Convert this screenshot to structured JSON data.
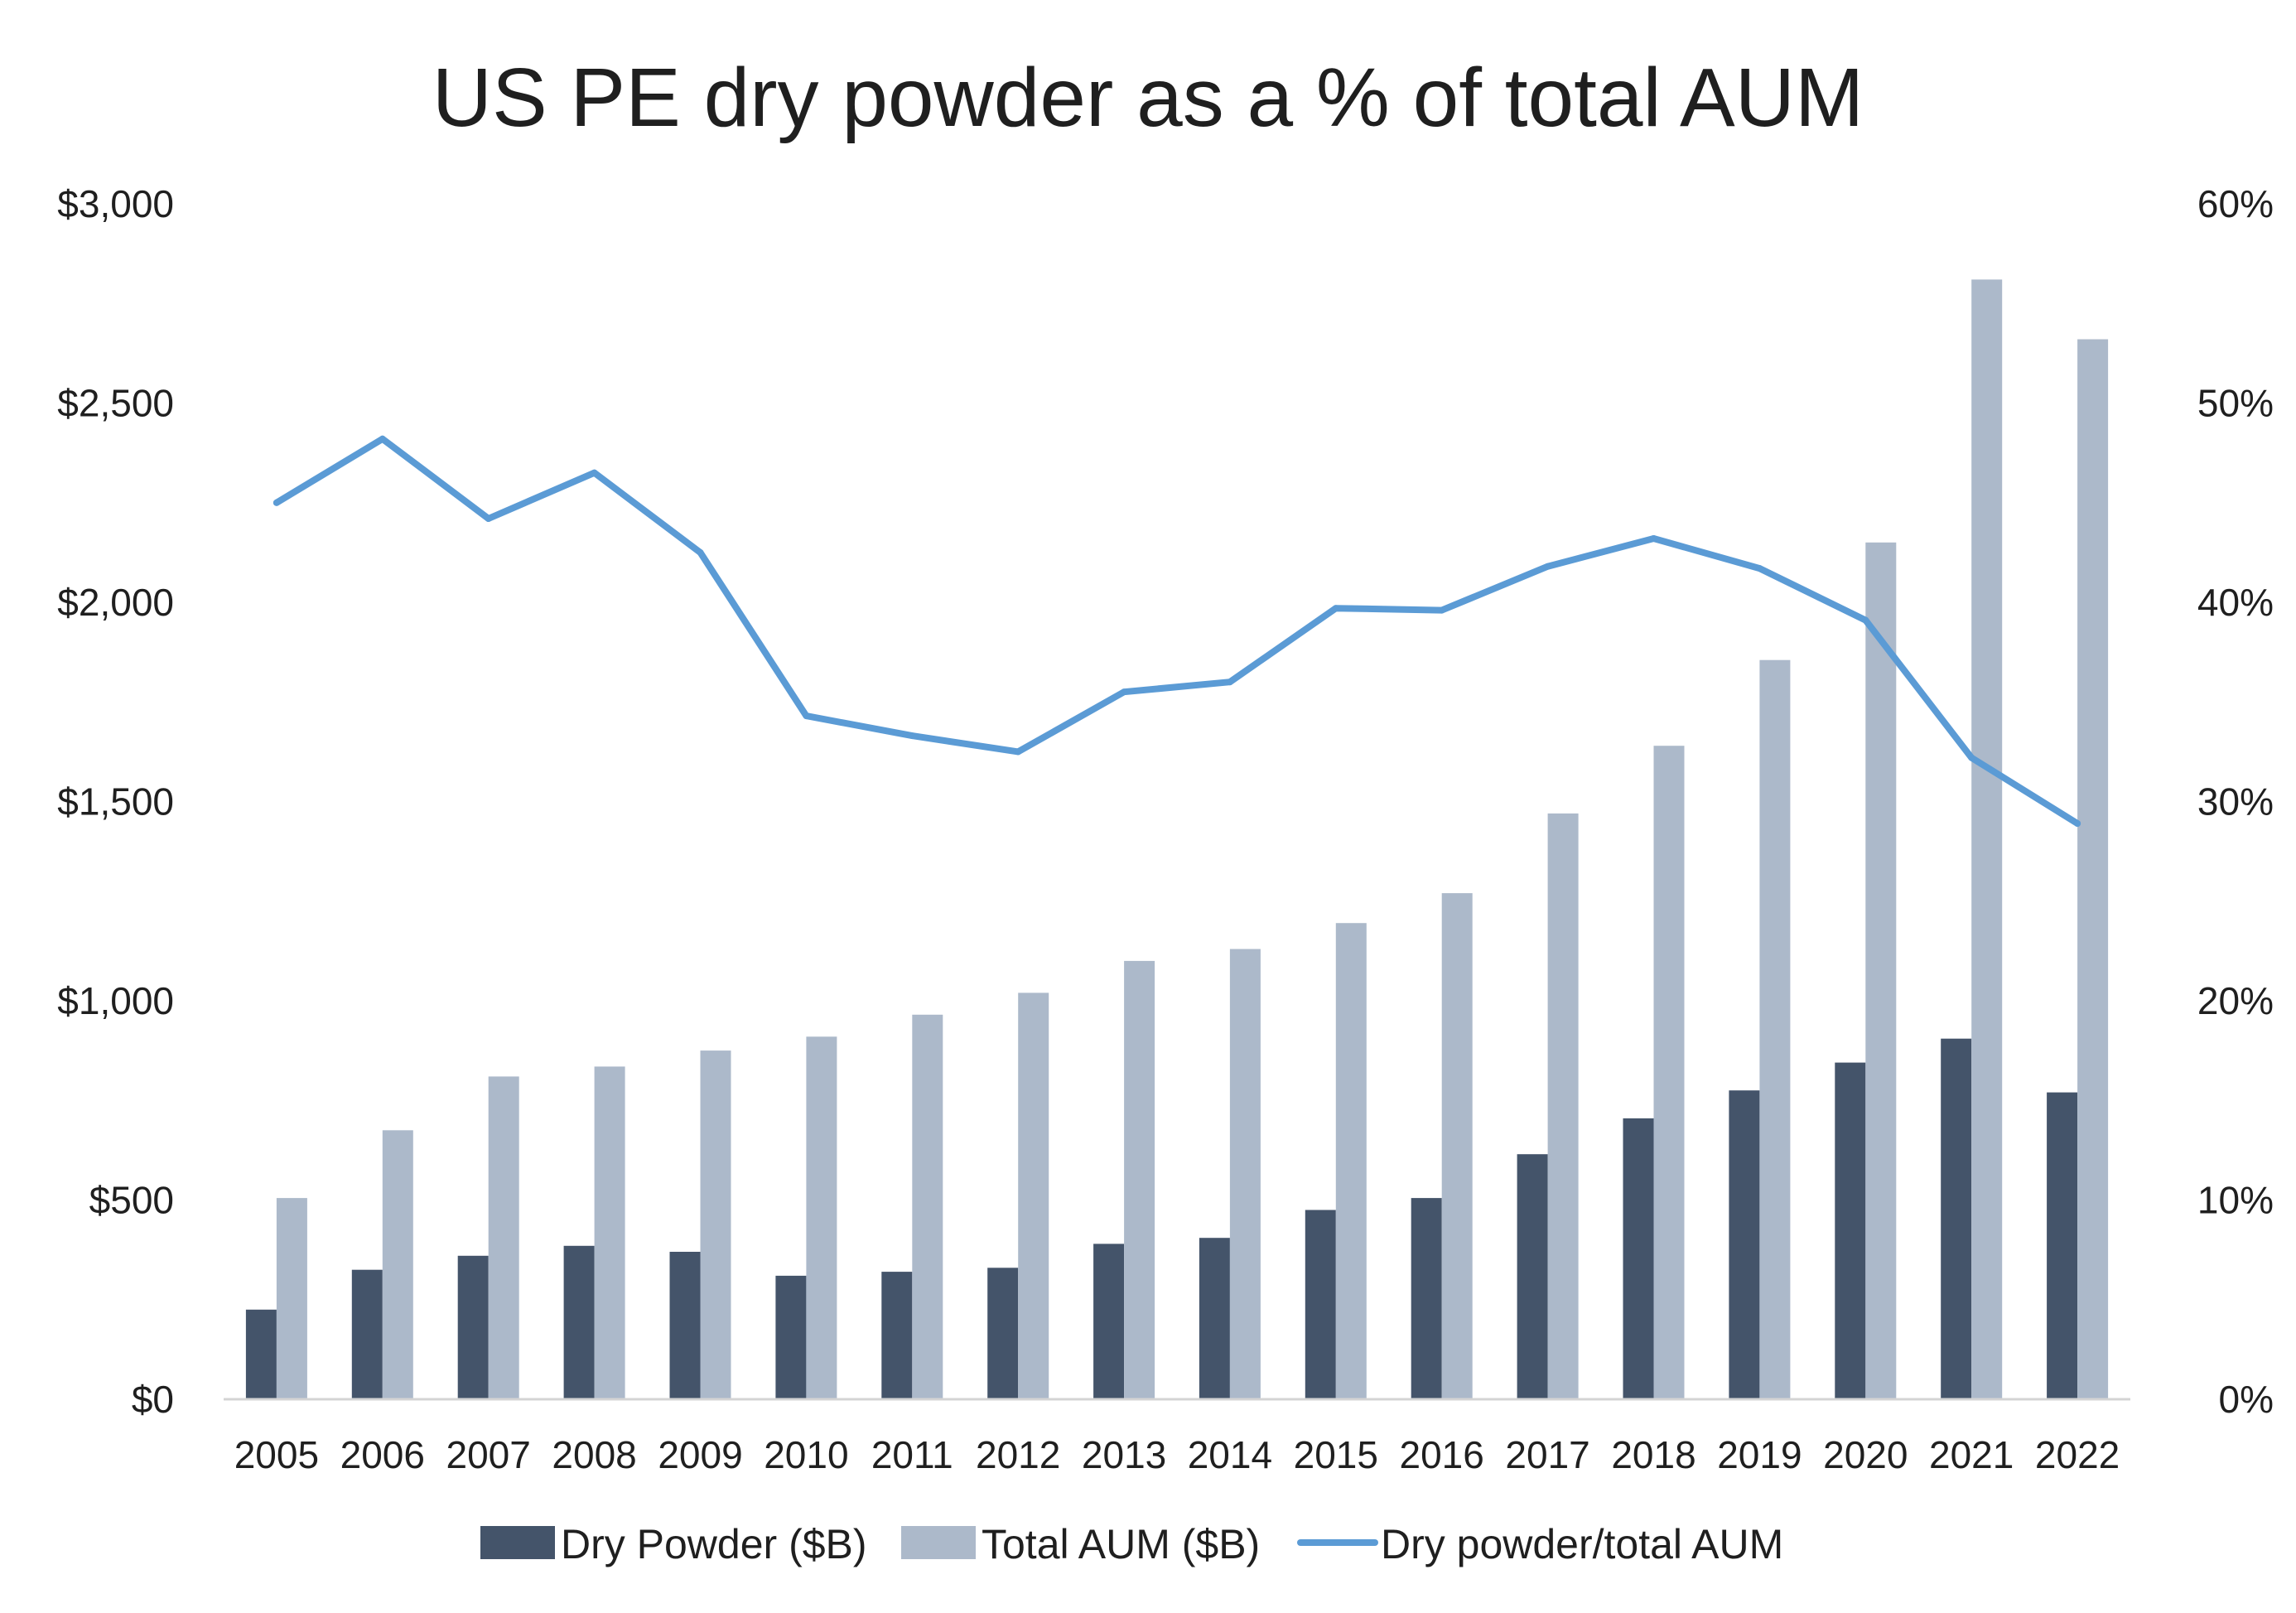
{
  "chart_data": {
    "type": "bar",
    "title": "US PE dry powder as a % of total AUM",
    "categories": [
      "2005",
      "2006",
      "2007",
      "2008",
      "2009",
      "2010",
      "2011",
      "2012",
      "2013",
      "2014",
      "2015",
      "2016",
      "2017",
      "2018",
      "2019",
      "2020",
      "2021",
      "2022"
    ],
    "series": [
      {
        "name": "Dry Powder ($B)",
        "type": "bar",
        "axis": "left",
        "color": "#44546a",
        "values": [
          225,
          325,
          360,
          385,
          370,
          310,
          320,
          330,
          390,
          405,
          475,
          505,
          615,
          705,
          775,
          845,
          905,
          770
        ]
      },
      {
        "name": "Total AUM ($B)",
        "type": "bar",
        "axis": "left",
        "color": "#acb9ca",
        "values": [
          505,
          675,
          810,
          835,
          875,
          910,
          965,
          1020,
          1100,
          1130,
          1195,
          1270,
          1470,
          1640,
          1855,
          2150,
          2810,
          2660
        ]
      },
      {
        "name": "Dry powder/total AUM",
        "type": "line",
        "axis": "right",
        "color": "#5b9bd5",
        "values": [
          45.0,
          48.2,
          44.2,
          46.5,
          42.5,
          34.3,
          33.3,
          32.5,
          35.5,
          36.0,
          39.7,
          39.6,
          41.8,
          43.2,
          41.7,
          39.1,
          32.2,
          28.9
        ]
      }
    ],
    "left_axis": {
      "ylim": [
        0,
        3000
      ],
      "ticks": [
        0,
        500,
        1000,
        1500,
        2000,
        2500,
        3000
      ],
      "tick_labels": [
        "$0",
        "$500",
        "$1,000",
        "$1,500",
        "$2,000",
        "$2,500",
        "$3,000"
      ]
    },
    "right_axis": {
      "ylim": [
        0,
        60
      ],
      "ticks": [
        0,
        10,
        20,
        30,
        40,
        50,
        60
      ],
      "tick_labels": [
        "0%",
        "10%",
        "20%",
        "30%",
        "40%",
        "50%",
        "60%"
      ]
    },
    "xlabel": "",
    "ylabel": "",
    "grid": false,
    "legend": "bottom"
  }
}
